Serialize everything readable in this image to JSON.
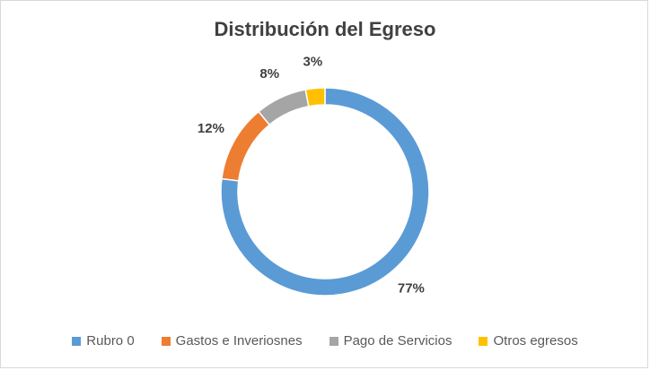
{
  "chart_data": {
    "type": "pie",
    "subtype": "doughnut",
    "title": "Distribución del Egreso",
    "categories": [
      "Rubro 0",
      "Gastos e Inveriosnes",
      "Pago de Servicios",
      "Otros egresos"
    ],
    "values": [
      77,
      12,
      8,
      3
    ],
    "labels": [
      "77%",
      "12%",
      "8%",
      "3%"
    ],
    "colors": [
      "#5b9bd5",
      "#ed7d31",
      "#a5a5a5",
      "#ffc000"
    ],
    "legend": "bottom"
  }
}
